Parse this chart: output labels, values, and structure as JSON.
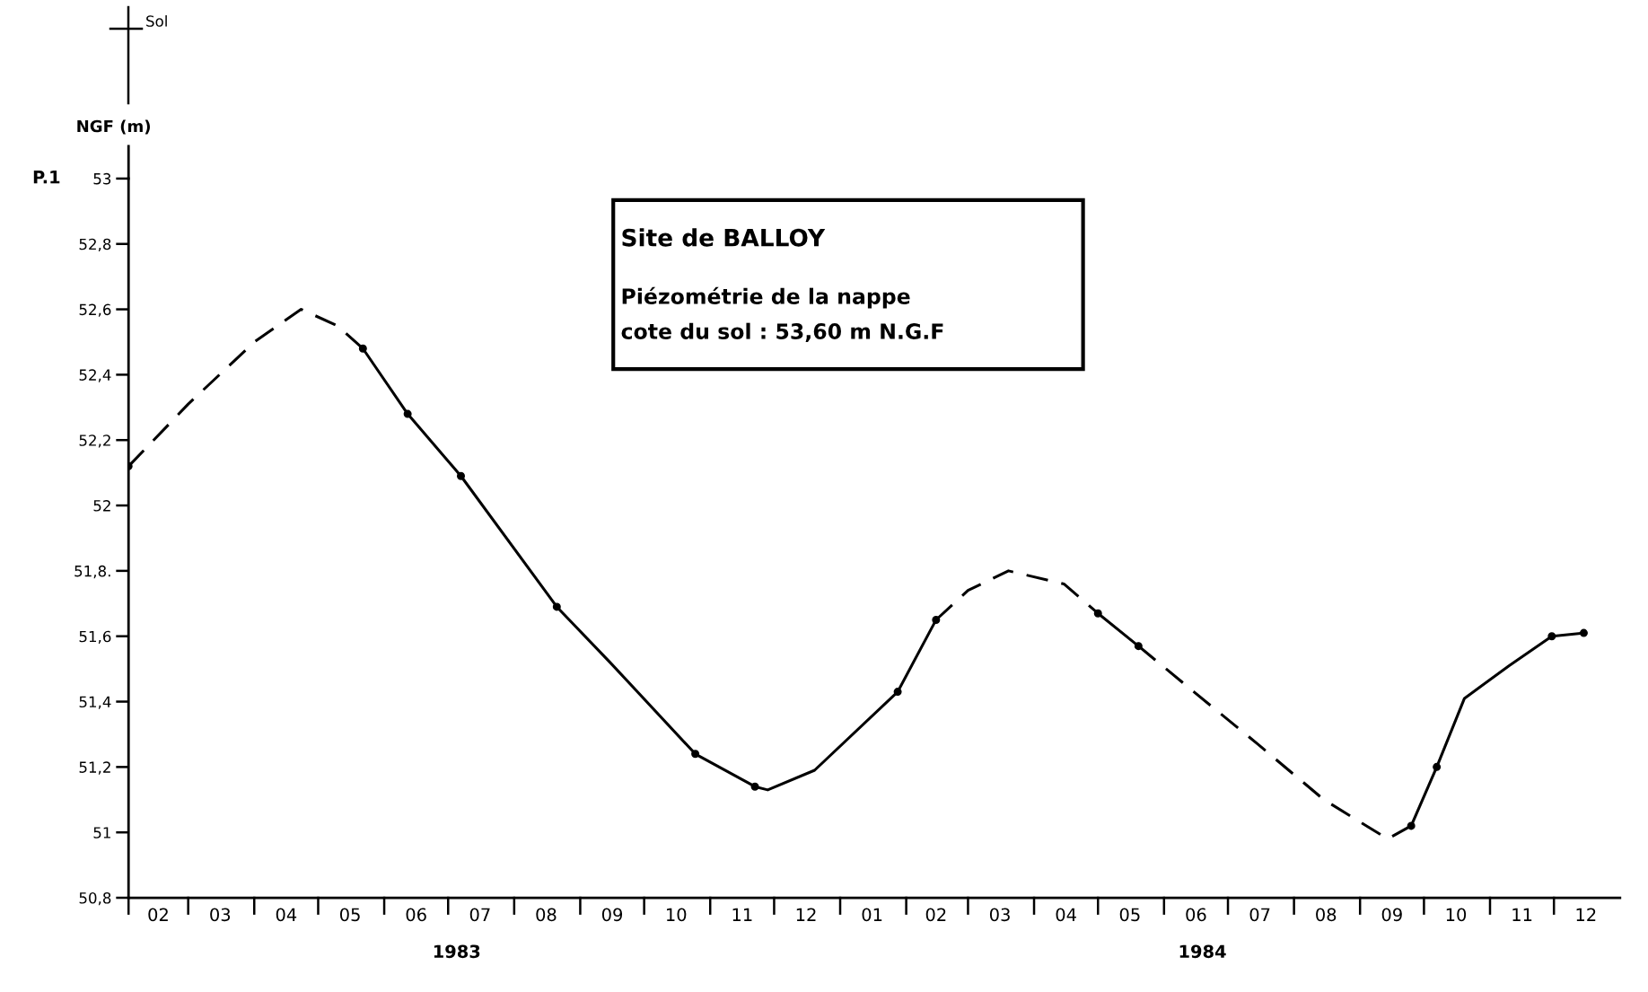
{
  "chart_data": {
    "type": "line",
    "title": "Site de BALLOY",
    "subtitle": "Piézométrie de la nappe\ncote du sol : 53,60 m N.G.F",
    "ylabel": "NGF (m)",
    "annotations": [
      "Sol",
      "P.1",
      "1983",
      "1984"
    ],
    "series": [
      {
        "line_style": "dashed",
        "color": "#000000",
        "x": [
          "1983-02-01",
          "1983-03-01",
          "1983-04-01",
          "1983-04-23",
          "1983-05-10",
          "1983-05-22"
        ],
        "values": [
          52.12,
          52.31,
          52.5,
          52.6,
          52.55,
          52.48
        ]
      },
      {
        "line_style": "solid",
        "color": "#000000",
        "x": [
          "1983-05-22",
          "1983-06-12",
          "1983-07-07",
          "1983-08-21",
          "1983-09-15",
          "1983-10-25",
          "1983-11-22",
          "1983-11-28",
          "1983-12-20",
          "1984-01-28",
          "1984-02-15"
        ],
        "values": [
          52.48,
          52.28,
          52.09,
          51.69,
          51.52,
          51.24,
          51.14,
          51.13,
          51.19,
          51.43,
          51.65
        ]
      },
      {
        "line_style": "dashed",
        "color": "#000000",
        "x": [
          "1984-02-15",
          "1984-03-01",
          "1984-03-20",
          "1984-04-15",
          "1984-05-01"
        ],
        "values": [
          51.65,
          51.74,
          51.8,
          51.76,
          51.67
        ]
      },
      {
        "line_style": "solid",
        "color": "#000000",
        "x": [
          "1984-05-01",
          "1984-05-20"
        ],
        "values": [
          51.67,
          51.57
        ]
      },
      {
        "line_style": "dashed",
        "color": "#000000",
        "x": [
          "1984-05-20",
          "1984-06-15",
          "1984-07-15",
          "1984-08-15",
          "1984-09-14",
          "1984-09-25"
        ],
        "values": [
          51.57,
          51.43,
          51.27,
          51.1,
          50.98,
          51.02
        ]
      },
      {
        "line_style": "solid",
        "color": "#000000",
        "x": [
          "1984-09-25",
          "1984-10-07",
          "1984-10-20",
          "1984-11-10",
          "1984-11-30",
          "1984-12-15"
        ],
        "values": [
          51.02,
          51.2,
          51.41,
          51.51,
          51.6,
          51.61
        ]
      },
      {
        "type": "scatter",
        "marker": "circle",
        "color": "#000000",
        "x": [
          "1983-02-01",
          "1983-05-22",
          "1983-06-12",
          "1983-07-07",
          "1983-08-21",
          "1983-10-25",
          "1983-11-22",
          "1984-01-28",
          "1984-02-15",
          "1984-05-01",
          "1984-05-20",
          "1984-09-25",
          "1984-10-07",
          "1984-11-30",
          "1984-12-15"
        ],
        "values": [
          52.12,
          52.48,
          52.28,
          52.09,
          51.69,
          51.24,
          51.14,
          51.43,
          51.65,
          51.67,
          51.57,
          51.02,
          51.2,
          51.6,
          51.61
        ]
      }
    ],
    "xlim": [
      "1983-02-01",
      "1985-01-01"
    ],
    "xticks": [
      {
        "value": "1983-02-15",
        "label": "02"
      },
      {
        "value": "1983-03-16",
        "label": "03"
      },
      {
        "value": "1983-04-16",
        "label": "04"
      },
      {
        "value": "1983-05-16",
        "label": "05"
      },
      {
        "value": "1983-06-16",
        "label": "06"
      },
      {
        "value": "1983-07-16",
        "label": "07"
      },
      {
        "value": "1983-08-16",
        "label": "08"
      },
      {
        "value": "1983-09-16",
        "label": "09"
      },
      {
        "value": "1983-10-16",
        "label": "10"
      },
      {
        "value": "1983-11-16",
        "label": "11"
      },
      {
        "value": "1983-12-16",
        "label": "12"
      },
      {
        "value": "1984-01-16",
        "label": "01"
      },
      {
        "value": "1984-02-15",
        "label": "02"
      },
      {
        "value": "1984-03-16",
        "label": "03"
      },
      {
        "value": "1984-04-16",
        "label": "04"
      },
      {
        "value": "1984-05-16",
        "label": "05"
      },
      {
        "value": "1984-06-16",
        "label": "06"
      },
      {
        "value": "1984-07-16",
        "label": "07"
      },
      {
        "value": "1984-08-16",
        "label": "08"
      },
      {
        "value": "1984-09-16",
        "label": "09"
      },
      {
        "value": "1984-10-16",
        "label": "10"
      },
      {
        "value": "1984-11-16",
        "label": "11"
      },
      {
        "value": "1984-12-16",
        "label": "12"
      }
    ],
    "ylim": [
      50.8,
      53
    ],
    "yticks": [
      {
        "value": 50.8,
        "label": "50,8"
      },
      {
        "value": 51,
        "label": "51"
      },
      {
        "value": 51.2,
        "label": "51,2"
      },
      {
        "value": 51.4,
        "label": "51,4"
      },
      {
        "value": 51.6,
        "label": "51,6"
      },
      {
        "value": 51.8,
        "label": "51,8."
      },
      {
        "value": 52,
        "label": "52"
      },
      {
        "value": 52.2,
        "label": "52,2"
      },
      {
        "value": 52.4,
        "label": "52,4"
      },
      {
        "value": 52.6,
        "label": "52,6"
      },
      {
        "value": 52.8,
        "label": "52,8"
      },
      {
        "value": 53,
        "label": "53"
      }
    ],
    "grid": false,
    "legend": false
  }
}
